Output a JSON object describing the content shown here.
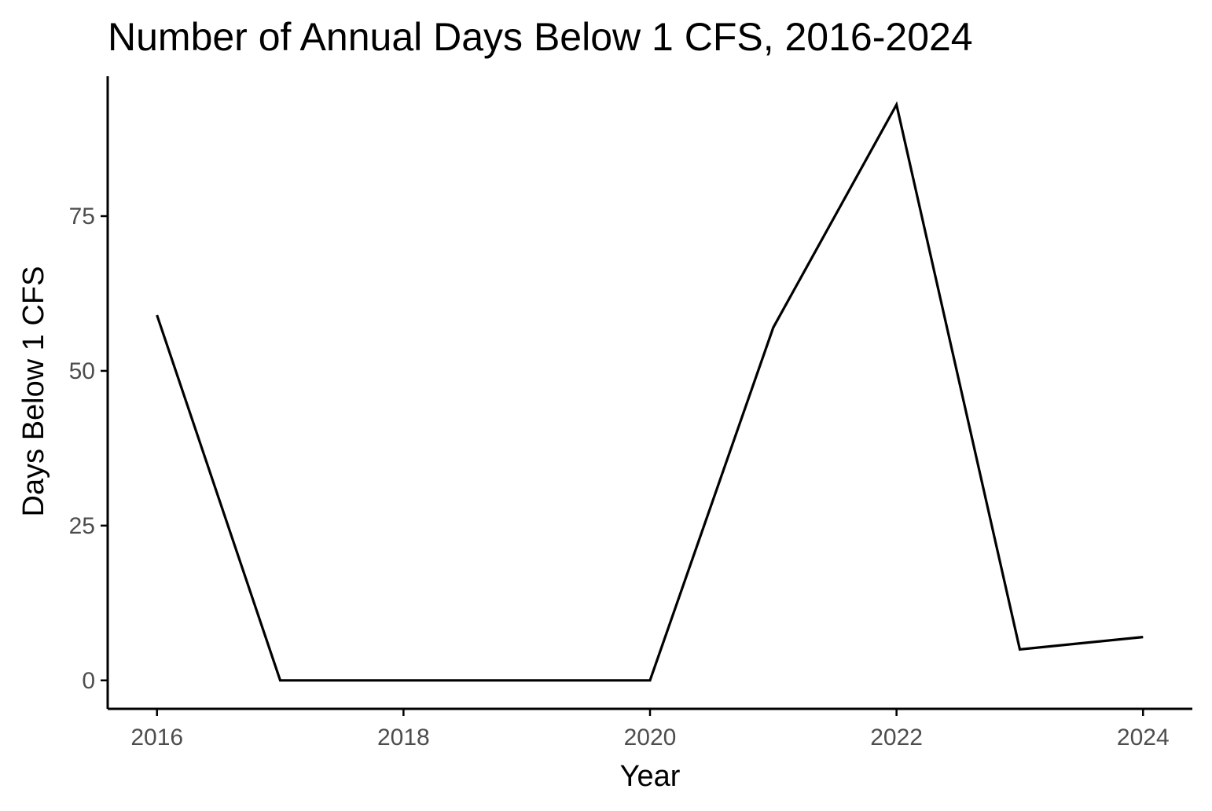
{
  "chart_data": {
    "type": "line",
    "title": "Number of Annual Days Below 1 CFS, 2016-2024",
    "xlabel": "Year",
    "ylabel": "Days Below 1 CFS",
    "x": [
      2016,
      2017,
      2018,
      2019,
      2020,
      2021,
      2022,
      2023,
      2024
    ],
    "series": [
      {
        "values": [
          59,
          0,
          0,
          0,
          0,
          57,
          93,
          5,
          7
        ]
      }
    ],
    "xlim": [
      2015.6,
      2024.4
    ],
    "ylim": [
      -4.6,
      97.6
    ],
    "xticks": [
      2016,
      2018,
      2020,
      2022,
      2024
    ],
    "yticks": [
      0,
      25,
      50,
      75
    ],
    "grid": false,
    "line_color": "#000000"
  }
}
